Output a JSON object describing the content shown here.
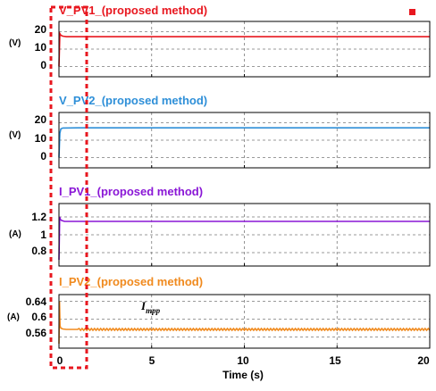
{
  "chart_data": [
    {
      "type": "line",
      "title": "V_PV1_(proposed method)",
      "unit_label": "(V)",
      "color": "#e8171f",
      "yticks": [
        20,
        10,
        0
      ],
      "ylim": [
        -6,
        26
      ],
      "xlim": [
        0,
        20
      ],
      "grid": true,
      "series": [
        {
          "x": [
            0,
            0.05,
            0.1,
            0.2,
            0.4,
            1,
            5,
            10,
            15,
            20
          ],
          "y": [
            0,
            19,
            18,
            17.5,
            17.2,
            17.2,
            17.2,
            17.2,
            17.2,
            17.2
          ]
        }
      ]
    },
    {
      "type": "line",
      "title": "V_PV2_(proposed method)",
      "unit_label": "(V)",
      "color": "#2e8fd8",
      "yticks": [
        20,
        10,
        0
      ],
      "ylim": [
        -6,
        26
      ],
      "xlim": [
        0,
        20
      ],
      "grid": true,
      "series": [
        {
          "x": [
            0,
            0.05,
            0.1,
            0.2,
            1,
            5,
            10,
            15,
            20
          ],
          "y": [
            0,
            14,
            16.5,
            17,
            17.1,
            17.1,
            17.1,
            17.1,
            17.1
          ]
        }
      ]
    },
    {
      "type": "line",
      "title": "I_PV1_(proposed method)",
      "unit_label": "(A)",
      "color": "#8a17d6",
      "yticks": [
        1.2,
        1,
        0.8
      ],
      "ylim": [
        0.65,
        1.35
      ],
      "xlim": [
        0,
        20
      ],
      "grid": true,
      "series": [
        {
          "x": [
            0,
            0.04,
            0.08,
            0.15,
            0.3,
            1,
            5,
            10,
            15,
            20
          ],
          "y": [
            0.72,
            1.2,
            1.17,
            1.16,
            1.15,
            1.15,
            1.15,
            1.15,
            1.15,
            1.15
          ]
        }
      ]
    },
    {
      "type": "line",
      "title": "I_PV2_(proposed method)",
      "unit_label": "(A)",
      "color": "#f08a1e",
      "yticks": [
        0.64,
        0.6,
        0.56
      ],
      "ylim": [
        0.535,
        0.655
      ],
      "xlim": [
        0,
        20
      ],
      "xticks": [
        0,
        5,
        10,
        15,
        20
      ],
      "xlabel": "Time (s)",
      "grid": true,
      "annotation": {
        "main": "I",
        "sub": "mpp",
        "x": 4.5,
        "y": 0.607
      },
      "series": [
        {
          "x": [
            0,
            0.03,
            0.06,
            0.1,
            0.2,
            0.4,
            1,
            5,
            10,
            15,
            20
          ],
          "y": [
            0.545,
            0.64,
            0.585,
            0.58,
            0.578,
            0.577,
            0.577,
            0.577,
            0.577,
            0.577,
            0.577
          ],
          "ripple": 0.002
        }
      ]
    }
  ],
  "colors": {
    "axis": "#000000",
    "grid": "#7a7a7a",
    "highlight_box": "#e8171f",
    "legend_marker": "#e8171f"
  }
}
